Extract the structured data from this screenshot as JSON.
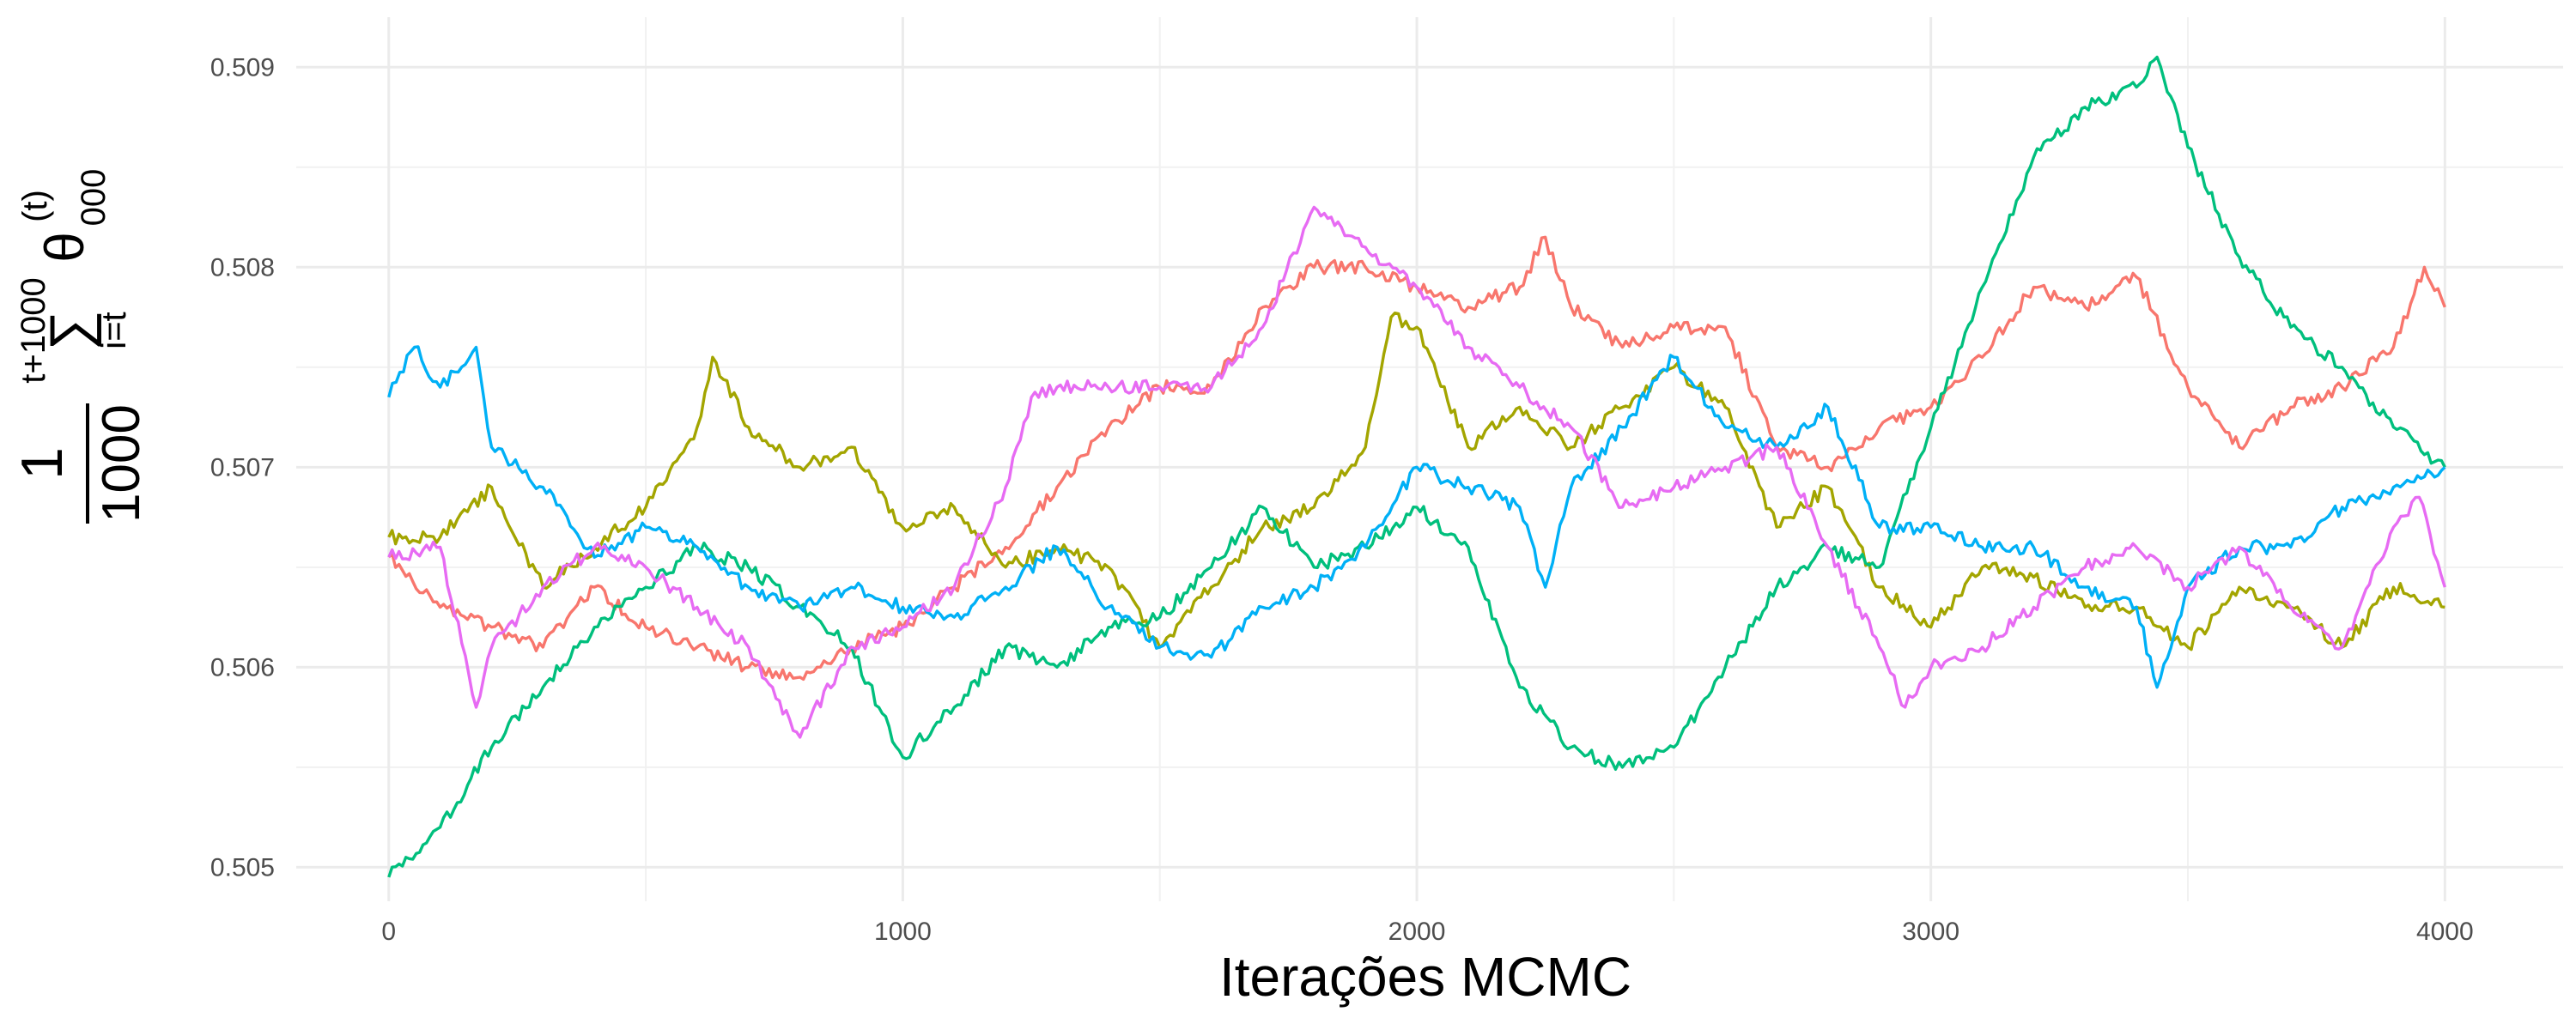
{
  "chart_data": {
    "type": "line",
    "title": "",
    "xlabel": "Iterações MCMC",
    "ylabel": {
      "numerator": "1",
      "denominator": "1000",
      "sum_upper": "t+1000",
      "sum_lower": "i=t",
      "sum_symbol": "∑",
      "variable": "θ",
      "subscript": "000",
      "superscript": "(t)"
    },
    "xlim": [
      -180,
      4230
    ],
    "ylim": [
      0.50483,
      0.50925
    ],
    "x_ticks": [
      0,
      1000,
      2000,
      3000,
      4000
    ],
    "x_tick_labels": [
      "0",
      "1000",
      "2000",
      "3000",
      "4000"
    ],
    "y_ticks": [
      0.505,
      0.506,
      0.507,
      0.508,
      0.509
    ],
    "y_tick_labels": [
      "0.505",
      "0.506",
      "0.507",
      "0.508",
      "0.509"
    ],
    "grid": true,
    "legend": "none",
    "series": [
      {
        "color": "#F8766D",
        "x": [
          0,
          100,
          200,
          300,
          400,
          500,
          600,
          700,
          800,
          900,
          1000,
          1100,
          1200,
          1300,
          1400,
          1500,
          1600,
          1700,
          1800,
          1900,
          2000,
          2100,
          2200,
          2250,
          2300,
          2400,
          2500,
          2600,
          2700,
          2800,
          2900,
          3000,
          3100,
          3200,
          3300,
          3400,
          3500,
          3600,
          3700,
          3800,
          3900,
          3960,
          4000
        ],
        "values": [
          0.50655,
          0.5063,
          0.5062,
          0.5061,
          0.5064,
          0.5062,
          0.5061,
          0.506,
          0.50595,
          0.5061,
          0.5062,
          0.5064,
          0.5066,
          0.5069,
          0.5072,
          0.5074,
          0.5074,
          0.5078,
          0.508,
          0.508,
          0.5079,
          0.5078,
          0.5079,
          0.50815,
          0.5078,
          0.5076,
          0.5077,
          0.5077,
          0.5071,
          0.507,
          0.5072,
          0.5073,
          0.50755,
          0.5079,
          0.5078,
          0.50795,
          0.5074,
          0.5071,
          0.5073,
          0.5074,
          0.5076,
          0.508,
          0.5078
        ]
      },
      {
        "color": "#A3A500",
        "x": [
          0,
          100,
          200,
          300,
          400,
          500,
          600,
          630,
          700,
          800,
          900,
          1000,
          1100,
          1200,
          1300,
          1400,
          1500,
          1600,
          1700,
          1800,
          1900,
          1950,
          2000,
          2100,
          2200,
          2300,
          2400,
          2500,
          2600,
          2700,
          2800,
          2900,
          3000,
          3100,
          3200,
          3300,
          3400,
          3500,
          3600,
          3700,
          3800,
          3900,
          4000
        ],
        "values": [
          0.50665,
          0.50665,
          0.5069,
          0.5064,
          0.5066,
          0.5068,
          0.5072,
          0.50755,
          0.5072,
          0.507,
          0.5071,
          0.5067,
          0.5068,
          0.5065,
          0.5066,
          0.5065,
          0.5061,
          0.5064,
          0.5067,
          0.5068,
          0.5071,
          0.50775,
          0.5077,
          0.5071,
          0.5073,
          0.5071,
          0.5073,
          0.5075,
          0.5073,
          0.5067,
          0.5069,
          0.5064,
          0.5062,
          0.5065,
          0.50645,
          0.5063,
          0.5063,
          0.5061,
          0.5064,
          0.5063,
          0.5061,
          0.5064,
          0.5063
        ]
      },
      {
        "color": "#00BF7D",
        "x": [
          0,
          100,
          200,
          300,
          400,
          500,
          600,
          700,
          800,
          900,
          1000,
          1100,
          1200,
          1300,
          1400,
          1500,
          1600,
          1700,
          1800,
          1900,
          2000,
          2100,
          2200,
          2300,
          2400,
          2500,
          2600,
          2700,
          2800,
          2900,
          3000,
          3100,
          3200,
          3300,
          3400,
          3440,
          3500,
          3600,
          3700,
          3800,
          3900,
          4000
        ],
        "values": [
          0.50495,
          0.5052,
          0.5056,
          0.5059,
          0.5062,
          0.5064,
          0.5066,
          0.5065,
          0.5063,
          0.5061,
          0.50555,
          0.5058,
          0.5061,
          0.506,
          0.5062,
          0.50625,
          0.5065,
          0.5068,
          0.5065,
          0.5066,
          0.5068,
          0.5066,
          0.5059,
          0.5056,
          0.5055,
          0.5056,
          0.506,
          0.5064,
          0.5066,
          0.5065,
          0.5072,
          0.5079,
          0.50855,
          0.5088,
          0.5089,
          0.50905,
          0.5086,
          0.50805,
          0.5077,
          0.5075,
          0.5072,
          0.507
        ]
      },
      {
        "color": "#00B0F6",
        "x": [
          0,
          50,
          100,
          170,
          200,
          300,
          400,
          500,
          600,
          700,
          800,
          900,
          1000,
          1100,
          1200,
          1300,
          1400,
          1500,
          1600,
          1700,
          1800,
          1900,
          2000,
          2100,
          2200,
          2250,
          2300,
          2400,
          2500,
          2600,
          2700,
          2800,
          2900,
          3000,
          3100,
          3200,
          3300,
          3400,
          3440,
          3500,
          3600,
          3700,
          3800,
          3900,
          4000
        ],
        "values": [
          0.50735,
          0.5076,
          0.5074,
          0.5076,
          0.5071,
          0.5069,
          0.50655,
          0.5067,
          0.5066,
          0.5064,
          0.5063,
          0.5064,
          0.5063,
          0.50625,
          0.5064,
          0.5066,
          0.5063,
          0.5061,
          0.50605,
          0.5063,
          0.5064,
          0.5066,
          0.507,
          0.5069,
          0.5068,
          0.5064,
          0.5069,
          0.5072,
          0.50755,
          0.5072,
          0.5071,
          0.5073,
          0.5067,
          0.5067,
          0.5066,
          0.5066,
          0.5064,
          0.5063,
          0.5059,
          0.5064,
          0.5066,
          0.5066,
          0.5068,
          0.5069,
          0.507
        ]
      },
      {
        "color": "#E76BF3",
        "x": [
          0,
          100,
          170,
          200,
          300,
          400,
          500,
          600,
          700,
          800,
          900,
          1000,
          1100,
          1200,
          1250,
          1300,
          1400,
          1500,
          1600,
          1700,
          1800,
          1900,
          2000,
          2100,
          2200,
          2300,
          2400,
          2500,
          2600,
          2700,
          2800,
          2900,
          2950,
          3000,
          3100,
          3200,
          3300,
          3400,
          3500,
          3600,
          3700,
          3800,
          3900,
          3950,
          4000
        ],
        "values": [
          0.50655,
          0.5066,
          0.5058,
          0.5061,
          0.5064,
          0.5066,
          0.5065,
          0.5063,
          0.5061,
          0.50565,
          0.5061,
          0.5062,
          0.5064,
          0.5069,
          0.50735,
          0.5074,
          0.5074,
          0.5074,
          0.5074,
          0.5077,
          0.5083,
          0.5081,
          0.5079,
          0.5076,
          0.5074,
          0.5072,
          0.5068,
          0.5069,
          0.507,
          0.5071,
          0.5066,
          0.5061,
          0.5058,
          0.506,
          0.5061,
          0.5063,
          0.5065,
          0.5066,
          0.5064,
          0.5066,
          0.5063,
          0.5061,
          0.5067,
          0.50685,
          0.5064
        ]
      }
    ]
  }
}
